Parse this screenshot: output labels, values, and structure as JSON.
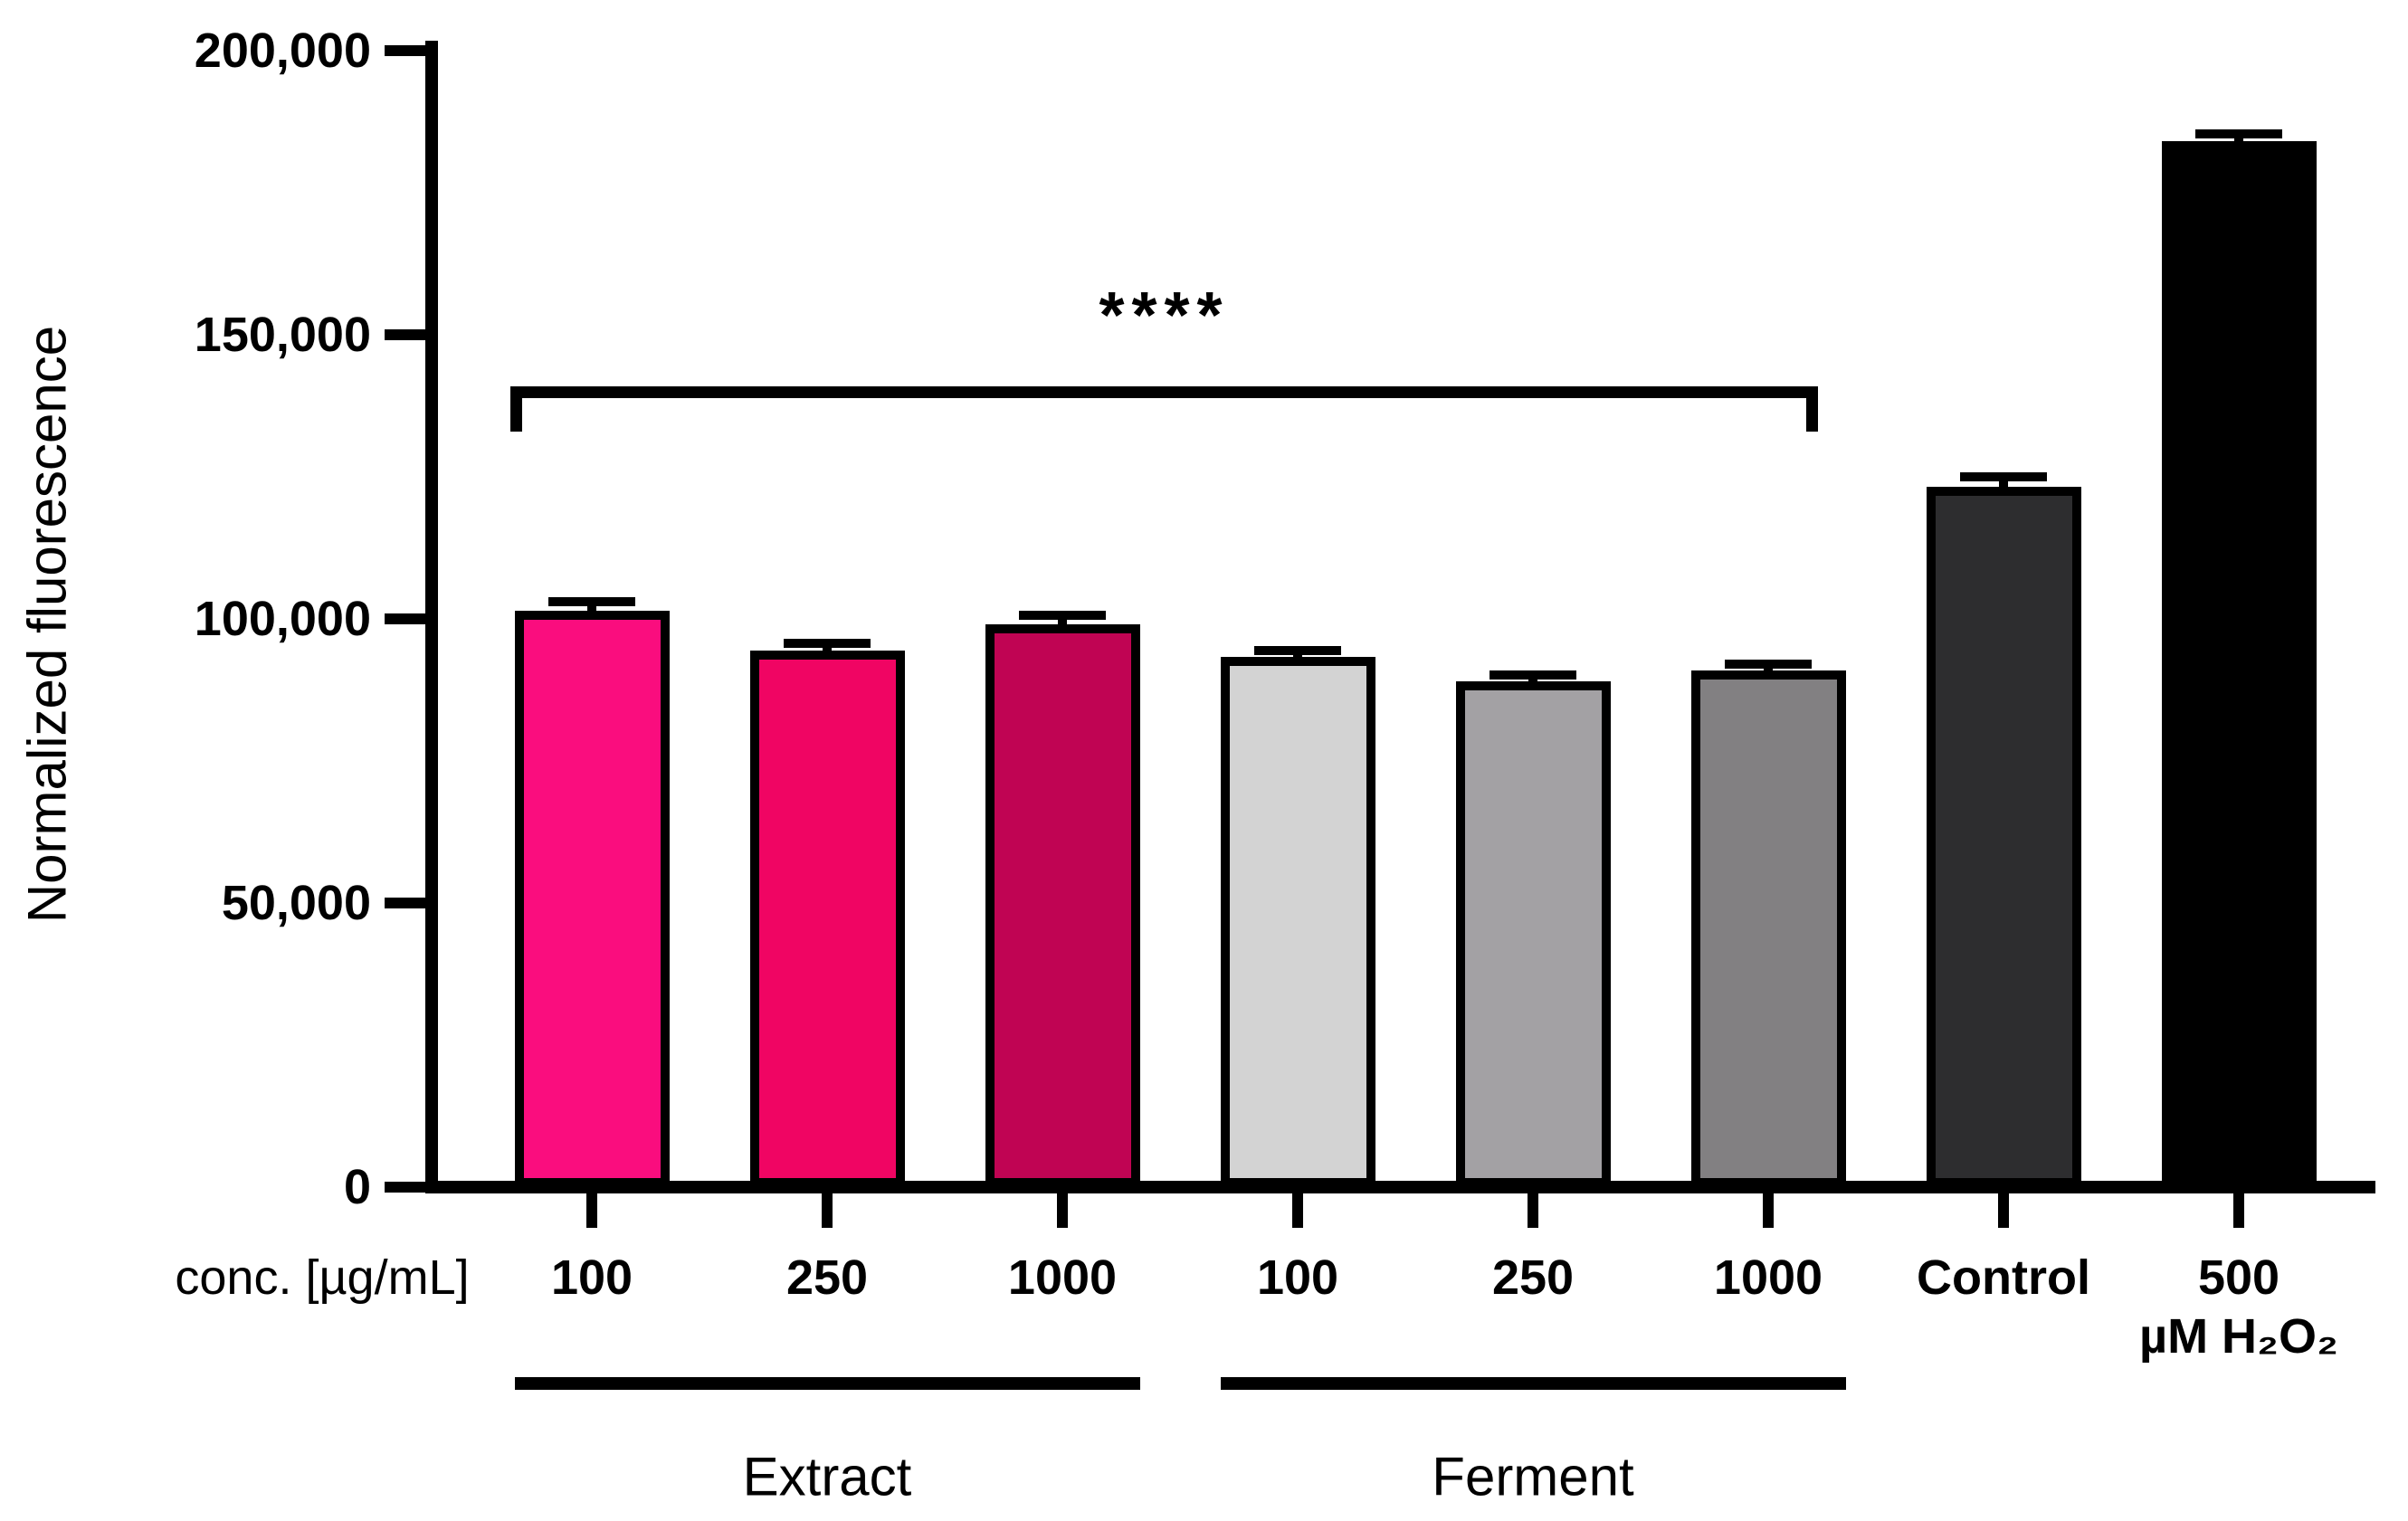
{
  "chart_data": {
    "type": "bar",
    "title": "",
    "ylabel": "Normalized fluorescence",
    "x_annotation": "conc. [µg/mL]",
    "ylim": [
      0,
      200000
    ],
    "grid": false,
    "legend": false,
    "yticks": [
      {
        "value": 0,
        "label": "0"
      },
      {
        "value": 50000,
        "label": "50,000"
      },
      {
        "value": 100000,
        "label": "100,000"
      },
      {
        "value": 150000,
        "label": "150,000"
      },
      {
        "value": 200000,
        "label": "200,000"
      }
    ],
    "bars": [
      {
        "category": "100",
        "category_line2": "",
        "value": 101500,
        "error": 1300,
        "color": "#FA0D7E"
      },
      {
        "category": "250",
        "category_line2": "",
        "value": 94500,
        "error": 1100,
        "color": "#F00563"
      },
      {
        "category": "1000",
        "category_line2": "",
        "value": 99000,
        "error": 1500,
        "color": "#C00453"
      },
      {
        "category": "100",
        "category_line2": "",
        "value": 93300,
        "error": 900,
        "color": "#D3D3D3"
      },
      {
        "category": "250",
        "category_line2": "",
        "value": 89000,
        "error": 900,
        "color": "#A3A1A4"
      },
      {
        "category": "1000",
        "category_line2": "",
        "value": 91000,
        "error": 900,
        "color": "#828082"
      },
      {
        "category": "Control",
        "category_line2": "",
        "value": 123300,
        "error": 1500,
        "color": "#2D2D2F"
      },
      {
        "category": "500",
        "category_line2": "µM H₂O₂",
        "value": 184000,
        "error": 1200,
        "color": "#000000"
      }
    ],
    "bar_border_color": "#000000",
    "axis_color": "#000000",
    "groups": [
      {
        "label": "Extract",
        "from": 0,
        "to": 2
      },
      {
        "label": "Ferment",
        "from": 3,
        "to": 5
      }
    ],
    "significance": {
      "text": "****",
      "from": 0,
      "to": 5
    }
  }
}
